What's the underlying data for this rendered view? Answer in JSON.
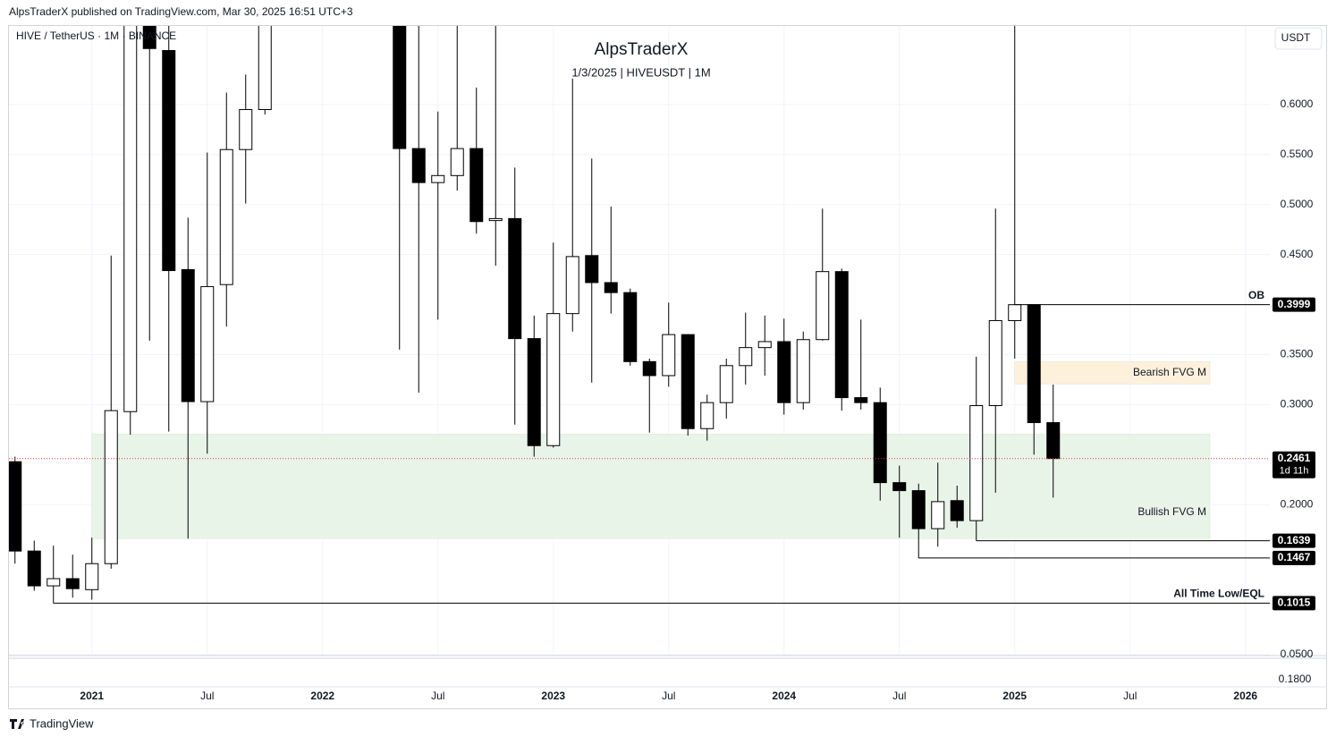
{
  "header": "AlpsTraderX published on TradingView.com, Mar 30, 2025 16:51 UTC+3",
  "footer": "TradingView",
  "chart_data": {
    "type": "candlestick",
    "symbol": "HIVE / TetherUS · 1M · BINANCE",
    "title": "AlpsTraderX",
    "subtitle": "1/3/2025 | HIVEUSDT | 1M",
    "currency": "USDT",
    "categories": [
      null,
      null,
      null,
      null,
      "2021",
      null,
      null,
      null,
      null,
      null,
      "Jul",
      null,
      null,
      null,
      null,
      null,
      "2022",
      null,
      null,
      null,
      null,
      null,
      "Jul",
      null,
      null,
      null,
      null,
      null,
      "2023",
      null,
      null,
      null,
      null,
      null,
      "Jul",
      null,
      null,
      null,
      null,
      null,
      "2024",
      null,
      null,
      null,
      null,
      null,
      "Jul",
      null,
      null,
      null,
      null,
      null,
      "2025",
      null,
      null,
      null,
      null,
      null,
      "Jul",
      null,
      null,
      null,
      null,
      null,
      "2026",
      null
    ],
    "open": [
      0.2429,
      0.1536,
      0.1188,
      0.126,
      0.115,
      0.141,
      0.293,
      0.75,
      0.654,
      0.435,
      0.303,
      0.42,
      0.555,
      0.595,
      null,
      null,
      null,
      null,
      null,
      null,
      0.75,
      0.556,
      0.522,
      0.529,
      0.556,
      0.484,
      0.486,
      0.366,
      0.259,
      0.391,
      0.449,
      0.422,
      0.412,
      0.343,
      0.329,
      0.37,
      0.276,
      0.302,
      0.339,
      0.357,
      0.363,
      0.302,
      0.365,
      0.433,
      0.307,
      0.302,
      0.222,
      0.214,
      0.176,
      0.204,
      0.184,
      0.299,
      0.384,
      0.3999,
      0.282,
      null,
      null,
      null,
      null,
      null,
      null,
      null,
      null,
      null,
      null,
      null
    ],
    "high": [
      0.248,
      0.164,
      0.159,
      0.15,
      0.167,
      0.449,
      0.9,
      0.85,
      0.7,
      0.487,
      0.552,
      0.612,
      0.63,
      0.85,
      null,
      null,
      null,
      null,
      null,
      null,
      0.8,
      0.679,
      0.593,
      0.679,
      0.617,
      0.679,
      0.537,
      0.389,
      0.462,
      0.626,
      0.546,
      0.498,
      0.416,
      0.346,
      0.402,
      0.37,
      0.31,
      0.346,
      0.392,
      0.389,
      0.386,
      0.373,
      0.496,
      0.436,
      0.385,
      0.317,
      0.239,
      0.221,
      0.242,
      0.219,
      0.348,
      0.496,
      0.679,
      0.4,
      0.32,
      null,
      null,
      null,
      null,
      null,
      null,
      null,
      null,
      null,
      null,
      null
    ],
    "low": [
      0.141,
      0.114,
      0.1015,
      0.107,
      0.105,
      0.136,
      0.27,
      0.364,
      0.273,
      0.166,
      0.251,
      0.378,
      0.501,
      0.59,
      null,
      null,
      null,
      null,
      null,
      null,
      0.355,
      0.312,
      0.385,
      0.514,
      0.471,
      0.439,
      0.28,
      0.248,
      0.257,
      0.373,
      0.322,
      0.391,
      0.339,
      0.272,
      0.318,
      0.269,
      0.264,
      0.286,
      0.32,
      0.329,
      0.29,
      0.295,
      0.364,
      0.294,
      0.295,
      0.204,
      0.167,
      0.1467,
      0.158,
      0.177,
      0.1639,
      0.212,
      0.346,
      0.25,
      0.207,
      null,
      null,
      null,
      null,
      null,
      null,
      null,
      null,
      null,
      null,
      null
    ],
    "close": [
      0.1536,
      0.1188,
      0.126,
      0.116,
      0.141,
      0.294,
      0.75,
      0.656,
      0.434,
      0.303,
      0.418,
      0.555,
      0.595,
      0.75,
      null,
      null,
      null,
      null,
      null,
      null,
      0.556,
      0.522,
      0.529,
      0.556,
      0.483,
      0.486,
      0.366,
      0.259,
      0.391,
      0.448,
      0.422,
      0.412,
      0.343,
      0.329,
      0.37,
      0.276,
      0.302,
      0.339,
      0.357,
      0.363,
      0.302,
      0.365,
      0.433,
      0.307,
      0.302,
      0.222,
      0.214,
      0.176,
      0.203,
      0.184,
      0.299,
      0.384,
      0.3999,
      0.282,
      0.2461,
      null,
      null,
      null,
      null,
      null,
      null,
      null,
      null,
      null,
      null,
      null
    ],
    "ylim": [
      0.05,
      0.6786
    ],
    "yticks": [
      {
        "value": 0.05,
        "label": "0.0500"
      },
      {
        "value": 0.2,
        "label": "0.2000"
      },
      {
        "value": 0.3,
        "label": "0.3000"
      },
      {
        "value": 0.35,
        "label": "0.3500"
      },
      {
        "value": 0.45,
        "label": "0.4500"
      },
      {
        "value": 0.5,
        "label": "0.5000"
      },
      {
        "value": 0.55,
        "label": "0.5500"
      },
      {
        "value": 0.6,
        "label": "0.6000"
      }
    ],
    "grid": true,
    "zones": [
      {
        "name": "Bearish FVG M",
        "top": 0.343,
        "bottom": 0.3205,
        "color": "#fdf1dc"
      },
      {
        "name": "Bullish FVG M",
        "top": 0.2705,
        "bottom": 0.166,
        "color": "#e9f4e9"
      }
    ],
    "levels": [
      {
        "value": 0.3999,
        "name": "OB"
      },
      {
        "value": 0.1639
      },
      {
        "value": 0.1467
      },
      {
        "value": 0.1015,
        "name": "All Time Low/EQL"
      }
    ],
    "last_price": 0.2461,
    "countdown": "1d 11h",
    "lower_pane_tick": "0.1800"
  }
}
